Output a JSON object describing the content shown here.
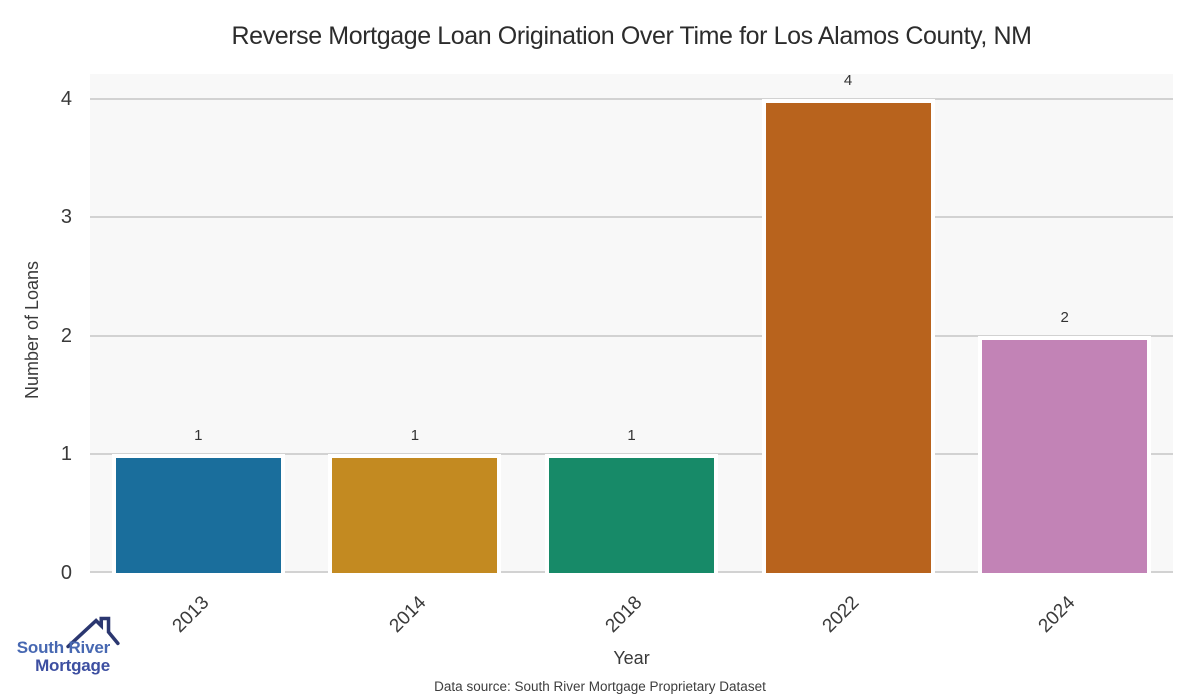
{
  "chart_data": {
    "type": "bar",
    "title": "Reverse Mortgage Loan Origination Over Time for Los Alamos County, NM",
    "categories": [
      "2013",
      "2014",
      "2018",
      "2022",
      "2024"
    ],
    "values": [
      1,
      1,
      1,
      4,
      2
    ],
    "bar_labels": [
      "1",
      "1",
      "1",
      "4",
      "2"
    ],
    "xlabel": "Year",
    "ylabel": "Number of Loans",
    "yticks": [
      0,
      1,
      2,
      3,
      4
    ],
    "ylim": [
      0,
      4.21
    ],
    "grid": true,
    "legend": false,
    "bar_colors": [
      "#1a6e9c",
      "#c38a21",
      "#178a68",
      "#b8631d",
      "#c283b6"
    ],
    "plot_bg": "#f8f8f8",
    "gridline_color": "#d2d2d2"
  },
  "footer": {
    "source_note": "Data source: South River Mortgage Proprietary Dataset"
  },
  "logo": {
    "line1": "South River",
    "line2": "Mortgage",
    "line1_color": "#4768b2",
    "line2_color": "#3d4fa1",
    "roof_color": "#2b3770",
    "roof_icon": "house-roof-icon"
  }
}
